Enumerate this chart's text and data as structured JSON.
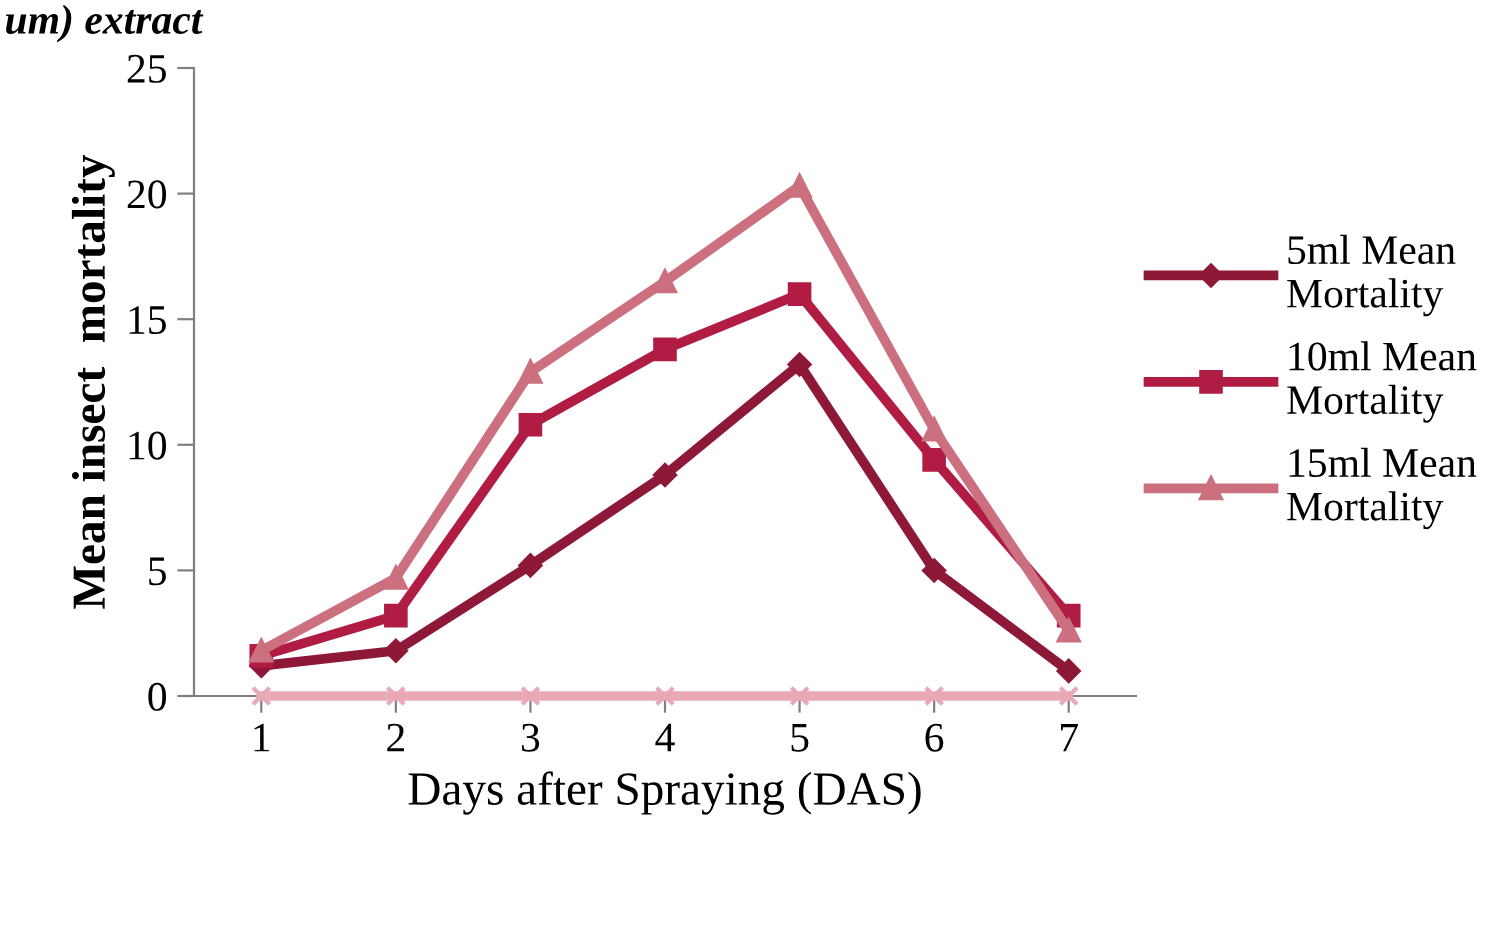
{
  "chart_data": {
    "type": "line",
    "title": "um) extract",
    "xlabel": "Days after Spraying (DAS)",
    "ylabel": "Mean insect  mortality",
    "categories": [
      "1",
      "2",
      "3",
      "4",
      "5",
      "6",
      "7"
    ],
    "series": [
      {
        "name": "5ml Mean\nMortality",
        "color": "#8e1838",
        "marker": "diamond",
        "values": [
          1.2,
          1.8,
          5.2,
          8.8,
          13.2,
          5.0,
          1.0
        ]
      },
      {
        "name": "10ml Mean\nMortality",
        "color": "#b01c44",
        "marker": "square",
        "values": [
          1.6,
          3.2,
          10.8,
          13.8,
          16.0,
          9.4,
          3.2
        ]
      },
      {
        "name": "15ml Mean\nMortality",
        "color": "#cc7080",
        "marker": "triangle",
        "values": [
          1.8,
          4.7,
          12.9,
          16.5,
          20.3,
          10.6,
          2.6
        ]
      },
      {
        "color": "#e8a8b8",
        "marker": "cross",
        "values": [
          0,
          0,
          0,
          0,
          0,
          0,
          0
        ]
      }
    ],
    "ylim": [
      0,
      25
    ],
    "yticks": [
      0,
      5,
      10,
      15,
      20,
      25
    ],
    "grid": false,
    "legend": "right"
  }
}
